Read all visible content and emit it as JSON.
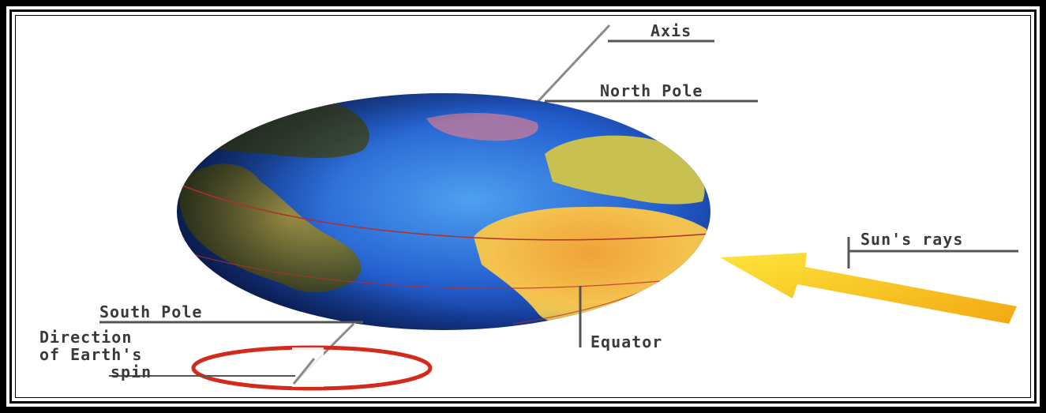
{
  "labels": {
    "axis": "Axis",
    "north_pole": "North Pole",
    "sun_rays": "Sun's rays",
    "south_pole": "South Pole",
    "direction_line1": "Direction",
    "direction_line2": "of Earth's",
    "direction_line3": "spin",
    "equator": "Equator"
  },
  "colors": {
    "ocean_light": "#3a86e8",
    "ocean_dark": "#0a2a8c",
    "land_yellow": "#f2c64a",
    "land_orange": "#e8942c",
    "land_green": "#8a8a3a",
    "arrow": "#f7c21c",
    "spin_ring": "#d42a1c",
    "leader_line": "#555555",
    "axis_line": "#8a8a8a",
    "equator_line": "#b0302a"
  }
}
